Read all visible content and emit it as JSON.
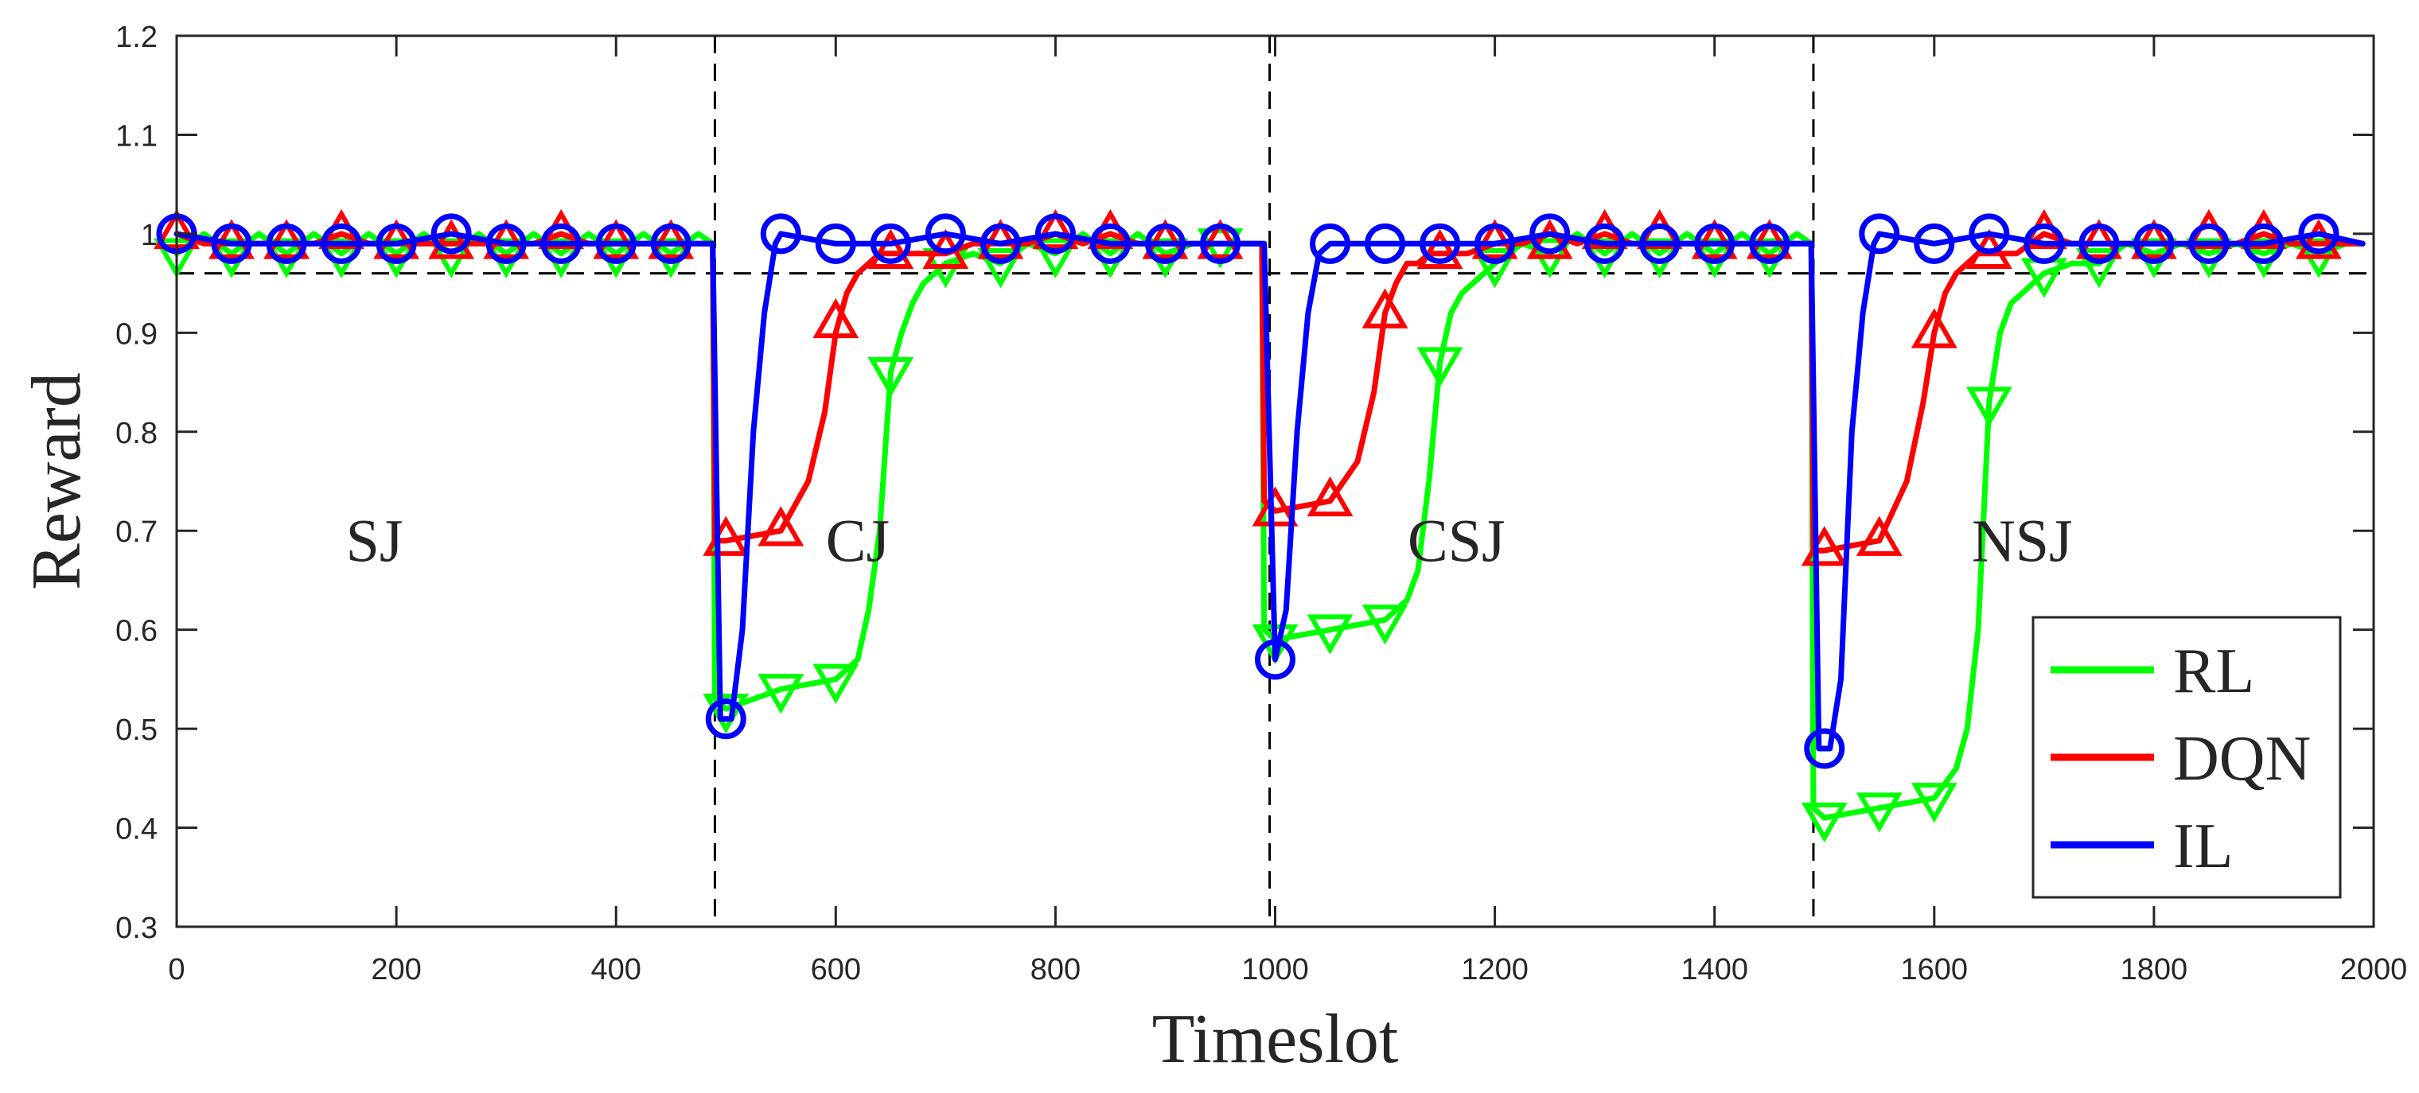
{
  "chart_data": {
    "type": "line",
    "xlabel": "Timeslot",
    "ylabel": "Reward",
    "xlim": [
      0,
      2000
    ],
    "ylim": [
      0.3,
      1.2
    ],
    "xticks": [
      0,
      200,
      400,
      600,
      800,
      1000,
      1200,
      1400,
      1600,
      1800,
      2000
    ],
    "yticks": [
      0.3,
      0.4,
      0.5,
      0.6,
      0.7,
      0.8,
      0.9,
      1,
      1.1,
      1.2
    ],
    "ytick_labels": [
      "0.3",
      "0.4",
      "0.5",
      "0.6",
      "0.7",
      "0.8",
      "0.9",
      "1",
      "1.1",
      "1.2"
    ],
    "reference_lines": {
      "horizontal": 0.96,
      "vertical": [
        490,
        995,
        1490
      ]
    },
    "region_labels": [
      {
        "text": "SJ",
        "x": 180,
        "y": 0.69
      },
      {
        "text": "CJ",
        "x": 620,
        "y": 0.69
      },
      {
        "text": "CSJ",
        "x": 1165,
        "y": 0.69
      },
      {
        "text": "NSJ",
        "x": 1680,
        "y": 0.69
      }
    ],
    "legend": {
      "position": "bottom-right",
      "entries": [
        "RL",
        "DQN",
        "IL"
      ]
    },
    "series": [
      {
        "name": "RL",
        "color": "#00ff00",
        "marker": "triangle-down",
        "x": [
          0,
          25,
          50,
          75,
          100,
          125,
          150,
          175,
          200,
          225,
          250,
          275,
          300,
          325,
          350,
          375,
          400,
          425,
          450,
          475,
          488,
          490,
          500,
          550,
          600,
          620,
          630,
          640,
          650,
          660,
          670,
          680,
          690,
          700,
          725,
          750,
          775,
          800,
          825,
          850,
          875,
          900,
          925,
          950,
          975,
          988,
          990,
          1000,
          1050,
          1100,
          1120,
          1130,
          1140,
          1150,
          1160,
          1170,
          1180,
          1190,
          1200,
          1225,
          1250,
          1275,
          1300,
          1325,
          1350,
          1375,
          1400,
          1425,
          1450,
          1475,
          1488,
          1490,
          1500,
          1550,
          1600,
          1620,
          1630,
          1640,
          1650,
          1660,
          1670,
          1680,
          1690,
          1700,
          1725,
          1750,
          1775,
          1800,
          1825,
          1850,
          1875,
          1900,
          1925,
          1950,
          1975,
          1990
        ],
        "y": [
          0.98,
          1.0,
          0.98,
          1.0,
          0.98,
          1.0,
          0.98,
          1.0,
          0.98,
          1.0,
          0.98,
          1.0,
          0.98,
          1.0,
          0.98,
          1.0,
          0.98,
          1.0,
          0.98,
          1.0,
          0.99,
          0.53,
          0.52,
          0.54,
          0.55,
          0.57,
          0.62,
          0.7,
          0.86,
          0.9,
          0.93,
          0.95,
          0.96,
          0.97,
          0.98,
          0.97,
          0.99,
          0.98,
          1.0,
          0.98,
          1.0,
          0.98,
          0.99,
          0.99,
          0.99,
          0.99,
          0.6,
          0.59,
          0.6,
          0.61,
          0.63,
          0.66,
          0.75,
          0.87,
          0.92,
          0.94,
          0.95,
          0.96,
          0.97,
          0.99,
          0.98,
          1.0,
          0.98,
          1.0,
          0.98,
          1.0,
          0.98,
          1.0,
          0.98,
          1.0,
          0.99,
          0.42,
          0.41,
          0.42,
          0.43,
          0.46,
          0.5,
          0.6,
          0.83,
          0.9,
          0.93,
          0.94,
          0.95,
          0.96,
          0.97,
          0.97,
          0.99,
          0.98,
          0.99,
          0.98,
          0.99,
          0.98,
          0.99,
          0.98,
          0.99,
          0.99
        ],
        "markers_x": [
          0,
          50,
          100,
          150,
          200,
          250,
          300,
          350,
          400,
          450,
          500,
          550,
          600,
          650,
          700,
          750,
          800,
          850,
          900,
          950,
          1000,
          1050,
          1100,
          1150,
          1200,
          1250,
          1300,
          1350,
          1400,
          1450,
          1500,
          1550,
          1600,
          1650,
          1700,
          1750,
          1800,
          1850,
          1900,
          1950
        ],
        "markers_y": [
          0.98,
          0.98,
          0.98,
          0.98,
          0.98,
          0.98,
          0.98,
          0.98,
          0.98,
          0.98,
          0.52,
          0.54,
          0.55,
          0.86,
          0.97,
          0.97,
          0.98,
          0.98,
          0.98,
          0.99,
          0.59,
          0.6,
          0.61,
          0.87,
          0.97,
          0.98,
          0.98,
          0.98,
          0.98,
          0.98,
          0.41,
          0.42,
          0.43,
          0.83,
          0.96,
          0.97,
          0.98,
          0.98,
          0.98,
          0.98
        ]
      },
      {
        "name": "DQN",
        "color": "#ff0000",
        "marker": "triangle-up",
        "x": [
          0,
          25,
          50,
          75,
          100,
          125,
          150,
          175,
          200,
          225,
          250,
          275,
          300,
          325,
          350,
          375,
          400,
          425,
          450,
          475,
          488,
          490,
          500,
          550,
          575,
          590,
          600,
          610,
          620,
          630,
          640,
          650,
          660,
          675,
          700,
          725,
          750,
          775,
          800,
          825,
          850,
          875,
          900,
          925,
          950,
          975,
          988,
          990,
          1000,
          1050,
          1075,
          1090,
          1100,
          1110,
          1120,
          1130,
          1140,
          1150,
          1160,
          1175,
          1200,
          1225,
          1250,
          1275,
          1300,
          1325,
          1350,
          1375,
          1400,
          1425,
          1450,
          1475,
          1488,
          1490,
          1500,
          1550,
          1575,
          1590,
          1600,
          1610,
          1620,
          1630,
          1640,
          1650,
          1660,
          1675,
          1700,
          1725,
          1750,
          1775,
          1800,
          1825,
          1850,
          1875,
          1900,
          1925,
          1950,
          1975,
          1990
        ],
        "y": [
          1.0,
          0.99,
          0.99,
          0.99,
          0.99,
          0.99,
          1.0,
          0.99,
          0.99,
          0.99,
          0.99,
          0.99,
          0.99,
          0.99,
          1.0,
          0.99,
          0.99,
          0.99,
          0.99,
          0.99,
          0.99,
          0.69,
          0.69,
          0.7,
          0.75,
          0.82,
          0.9,
          0.94,
          0.96,
          0.97,
          0.98,
          0.98,
          0.98,
          0.98,
          0.98,
          0.99,
          0.99,
          0.99,
          1.0,
          0.99,
          1.0,
          0.99,
          0.99,
          0.99,
          0.99,
          0.99,
          0.99,
          0.73,
          0.72,
          0.73,
          0.77,
          0.84,
          0.92,
          0.95,
          0.97,
          0.97,
          0.98,
          0.98,
          0.98,
          0.98,
          0.99,
          0.99,
          1.0,
          0.99,
          1.0,
          0.99,
          0.99,
          0.99,
          0.99,
          0.99,
          0.99,
          0.99,
          0.99,
          0.68,
          0.68,
          0.69,
          0.75,
          0.83,
          0.9,
          0.94,
          0.96,
          0.97,
          0.98,
          0.98,
          0.98,
          0.98,
          1.0,
          0.99,
          0.99,
          0.99,
          0.99,
          0.99,
          0.99,
          0.99,
          1.0,
          0.99,
          0.99,
          0.99,
          0.99
        ],
        "markers_x": [
          0,
          50,
          100,
          150,
          200,
          250,
          300,
          350,
          400,
          450,
          500,
          550,
          600,
          650,
          700,
          750,
          800,
          850,
          900,
          950,
          1000,
          1050,
          1100,
          1150,
          1200,
          1250,
          1300,
          1350,
          1400,
          1450,
          1500,
          1550,
          1600,
          1650,
          1700,
          1750,
          1800,
          1850,
          1900,
          1950
        ],
        "markers_y": [
          1.0,
          0.99,
          0.99,
          1.0,
          0.99,
          0.99,
          0.99,
          1.0,
          0.99,
          0.99,
          0.69,
          0.7,
          0.91,
          0.98,
          0.98,
          0.99,
          1.0,
          1.0,
          0.99,
          0.99,
          0.72,
          0.73,
          0.92,
          0.98,
          0.99,
          0.99,
          1.0,
          1.0,
          0.99,
          0.99,
          0.68,
          0.69,
          0.9,
          0.98,
          1.0,
          0.99,
          0.99,
          1.0,
          1.0,
          0.99
        ]
      },
      {
        "name": "IL",
        "color": "#0000ff",
        "marker": "circle",
        "x": [
          0,
          50,
          100,
          150,
          200,
          250,
          300,
          350,
          400,
          450,
          475,
          488,
          495,
          505,
          515,
          525,
          535,
          545,
          550,
          600,
          650,
          700,
          750,
          800,
          850,
          900,
          950,
          980,
          990,
          1000,
          1010,
          1020,
          1030,
          1040,
          1050,
          1100,
          1150,
          1200,
          1250,
          1300,
          1350,
          1400,
          1450,
          1480,
          1488,
          1495,
          1505,
          1515,
          1525,
          1535,
          1545,
          1550,
          1600,
          1650,
          1700,
          1750,
          1800,
          1850,
          1900,
          1950,
          1990
        ],
        "y": [
          1.0,
          0.99,
          0.99,
          0.99,
          0.99,
          1.0,
          0.99,
          0.99,
          0.99,
          0.99,
          0.99,
          0.99,
          0.51,
          0.51,
          0.6,
          0.8,
          0.92,
          0.99,
          1.0,
          0.99,
          0.99,
          1.0,
          0.99,
          1.0,
          0.99,
          0.99,
          0.99,
          0.99,
          0.99,
          0.57,
          0.62,
          0.8,
          0.92,
          0.98,
          0.99,
          0.99,
          0.99,
          0.99,
          1.0,
          0.99,
          0.99,
          0.99,
          0.99,
          0.99,
          0.99,
          0.48,
          0.48,
          0.55,
          0.8,
          0.92,
          0.99,
          1.0,
          0.99,
          1.0,
          0.99,
          0.99,
          0.99,
          0.99,
          0.99,
          1.0,
          0.99
        ],
        "markers_x": [
          0,
          50,
          100,
          150,
          200,
          250,
          300,
          350,
          400,
          450,
          500,
          550,
          600,
          650,
          700,
          750,
          800,
          850,
          900,
          950,
          1000,
          1050,
          1100,
          1150,
          1200,
          1250,
          1300,
          1350,
          1400,
          1450,
          1500,
          1550,
          1600,
          1650,
          1700,
          1750,
          1800,
          1850,
          1900,
          1950
        ],
        "markers_y": [
          1.0,
          0.99,
          0.99,
          0.99,
          0.99,
          1.0,
          0.99,
          0.99,
          0.99,
          0.99,
          0.51,
          1.0,
          0.99,
          0.99,
          1.0,
          0.99,
          1.0,
          0.99,
          0.99,
          0.99,
          0.57,
          0.99,
          0.99,
          0.99,
          0.99,
          1.0,
          0.99,
          0.99,
          0.99,
          0.99,
          0.48,
          1.0,
          0.99,
          1.0,
          0.99,
          0.99,
          0.99,
          0.99,
          0.99,
          1.0
        ]
      }
    ]
  }
}
